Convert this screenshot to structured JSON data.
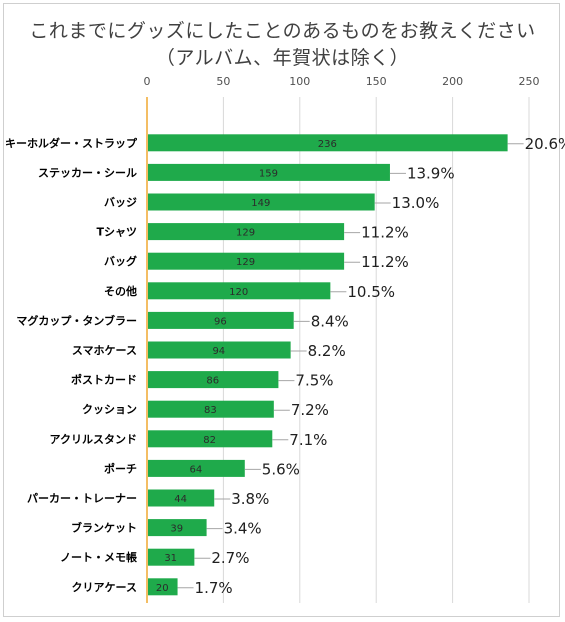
{
  "chart_data": {
    "type": "bar",
    "orientation": "horizontal",
    "title": "これまでにグッズにしたことのあるものをお教えください",
    "subtitle": "（アルバム、年賀状は除く）",
    "categories": [
      "キーホルダー・ストラップ",
      "ステッカー・シール",
      "バッジ",
      "Tシャツ",
      "バッグ",
      "その他",
      "マグカップ・タンブラー",
      "スマホケース",
      "ポストカード",
      "クッション",
      "アクリルスタンド",
      "ポーチ",
      "パーカー・トレーナー",
      "ブランケット",
      "ノート・メモ帳",
      "クリアケース"
    ],
    "values": [
      236,
      159,
      149,
      129,
      129,
      120,
      96,
      94,
      86,
      83,
      82,
      64,
      44,
      39,
      31,
      20
    ],
    "percent_labels": [
      "20.6%",
      "13.9%",
      "13.0%",
      "11.2%",
      "11.2%",
      "10.5%",
      "8.4%",
      "8.2%",
      "7.5%",
      "7.2%",
      "7.1%",
      "5.6%",
      "3.8%",
      "3.4%",
      "2.7%",
      "1.7%"
    ],
    "xlim": [
      0,
      250
    ],
    "x_ticks": [
      0,
      50,
      100,
      150,
      200,
      250
    ],
    "x_axis_position": "top",
    "grid": true,
    "legend": "none",
    "bar_color": "#1faa4b",
    "axis_color": "#f0a830"
  }
}
